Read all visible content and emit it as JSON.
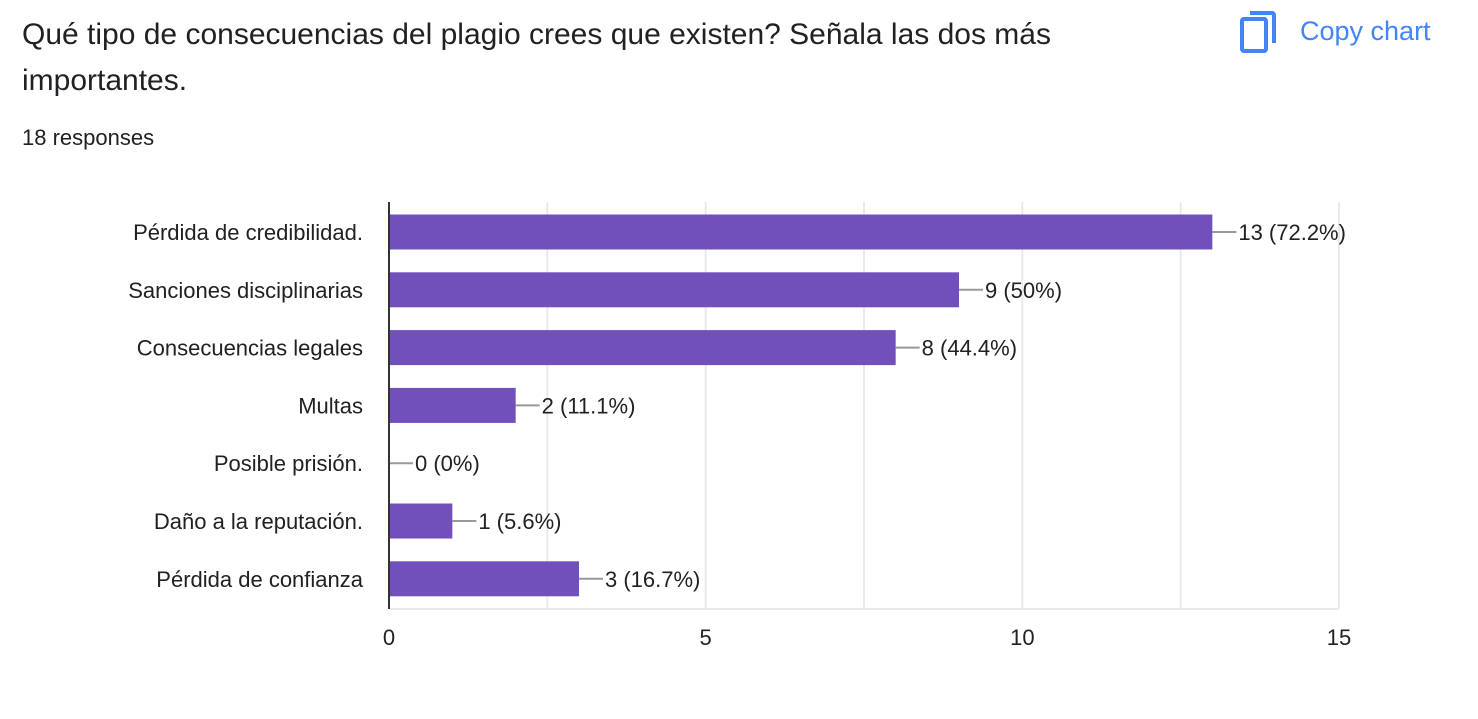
{
  "question": {
    "title": "Qué tipo de consecuencias del plagio crees que existen? Señala las dos más importantes.",
    "responses": "18 responses"
  },
  "copy_chart": {
    "label": "Copy chart",
    "icon": "copy-icon"
  },
  "colors": {
    "bar": "#7150bb",
    "grid": "#e8eaed",
    "axis": "#333333",
    "text": "#202124",
    "link": "#4285f4"
  },
  "chart_data": {
    "type": "bar",
    "orientation": "horizontal",
    "categories": [
      "Pérdida de credibilidad.",
      "Sanciones disciplinarias",
      "Consecuencias legales",
      "Multas",
      "Posible prisión.",
      "Daño a la reputación.",
      "Pérdida de confianza"
    ],
    "values": [
      13,
      9,
      8,
      2,
      0,
      1,
      3
    ],
    "data_labels": [
      "13 (72.2%)",
      "9 (50%)",
      "8 (44.4%)",
      "2 (11.1%)",
      "0 (0%)",
      "1 (5.6%)",
      "3 (16.7%)"
    ],
    "xlim": [
      0,
      15
    ],
    "x_ticks": [
      0,
      5,
      10,
      15
    ],
    "x_tick_labels": [
      "0",
      "5",
      "10",
      "15"
    ],
    "grid": true
  }
}
